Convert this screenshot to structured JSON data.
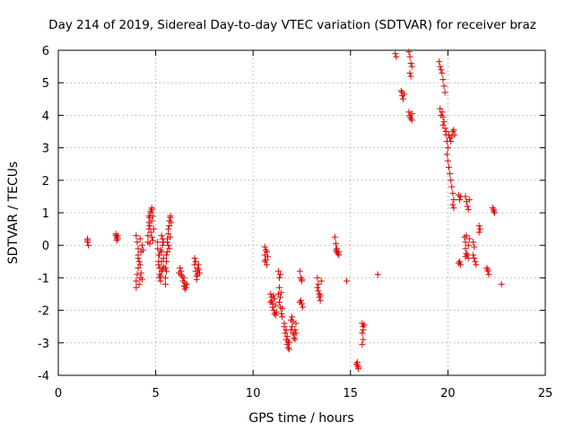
{
  "chart_data": {
    "type": "scatter",
    "title": "Day 214 of 2019, Sidereal Day-to-day VTEC variation (SDTVAR) for receiver braz",
    "xlabel": "GPS time / hours",
    "ylabel": "SDTVAR / TECUs",
    "xlim": [
      0,
      25
    ],
    "ylim": [
      -4,
      6
    ],
    "xticks": [
      "0",
      "5",
      "10",
      "15",
      "20",
      "25"
    ],
    "yticks": [
      "-4",
      "-3",
      "-2",
      "-1",
      "0",
      "1",
      "2",
      "3",
      "4",
      "5",
      "6"
    ],
    "grid": true,
    "marker": "plus",
    "color": "#e00000",
    "series": [
      {
        "name": "SDTVAR",
        "points": [
          [
            1.5,
            0.2
          ],
          [
            1.5,
            0.1
          ],
          [
            1.55,
            0.0
          ],
          [
            1.5,
            0.15
          ],
          [
            2.95,
            0.35
          ],
          [
            2.95,
            0.3
          ],
          [
            3.0,
            0.25
          ],
          [
            3.0,
            0.2
          ],
          [
            3.0,
            0.15
          ],
          [
            3.05,
            0.3
          ],
          [
            3.05,
            0.2
          ],
          [
            4.0,
            0.3
          ],
          [
            4.05,
            0.1
          ],
          [
            4.1,
            -0.1
          ],
          [
            4.1,
            -0.3
          ],
          [
            4.15,
            -0.5
          ],
          [
            4.1,
            -0.7
          ],
          [
            4.05,
            -0.9
          ],
          [
            4.0,
            -1.1
          ],
          [
            4.0,
            -1.3
          ],
          [
            4.15,
            -1.2
          ],
          [
            4.2,
            -1.0
          ],
          [
            4.25,
            -0.85
          ],
          [
            4.3,
            -1.05
          ],
          [
            4.2,
            -0.6
          ],
          [
            4.25,
            -0.2
          ],
          [
            4.3,
            0.0
          ],
          [
            4.35,
            -0.15
          ],
          [
            4.2,
            0.2
          ],
          [
            4.1,
            -0.4
          ],
          [
            4.6,
            0.1
          ],
          [
            4.6,
            0.3
          ],
          [
            4.65,
            0.5
          ],
          [
            4.65,
            0.7
          ],
          [
            4.7,
            0.85
          ],
          [
            4.75,
            1.0
          ],
          [
            4.8,
            1.1
          ],
          [
            4.8,
            1.15
          ],
          [
            4.85,
            0.9
          ],
          [
            4.7,
            0.6
          ],
          [
            4.75,
            0.4
          ],
          [
            4.8,
            0.25
          ],
          [
            4.85,
            0.15
          ],
          [
            4.7,
            0.05
          ],
          [
            4.65,
            0.9
          ],
          [
            4.8,
            0.75
          ],
          [
            4.9,
            0.5
          ],
          [
            4.75,
            1.05
          ],
          [
            5.1,
            0.1
          ],
          [
            5.1,
            -0.1
          ],
          [
            5.15,
            -0.3
          ],
          [
            5.15,
            -0.5
          ],
          [
            5.2,
            -0.7
          ],
          [
            5.2,
            -0.9
          ],
          [
            5.25,
            -1.1
          ],
          [
            5.3,
            -0.8
          ],
          [
            5.3,
            -0.5
          ],
          [
            5.3,
            -0.2
          ],
          [
            5.35,
            0.0
          ],
          [
            5.35,
            0.2
          ],
          [
            5.4,
            -0.4
          ],
          [
            5.4,
            -0.65
          ],
          [
            5.2,
            -0.3
          ],
          [
            5.25,
            -0.95
          ],
          [
            5.35,
            -0.75
          ],
          [
            5.15,
            -0.6
          ],
          [
            5.3,
            0.3
          ],
          [
            5.4,
            0.1
          ],
          [
            5.25,
            -0.15
          ],
          [
            5.2,
            -1.0
          ],
          [
            5.5,
            -1.0
          ],
          [
            5.5,
            -1.2
          ],
          [
            5.55,
            -0.8
          ],
          [
            5.55,
            -0.5
          ],
          [
            5.6,
            -0.2
          ],
          [
            5.6,
            0.1
          ],
          [
            5.65,
            0.35
          ],
          [
            5.65,
            0.5
          ],
          [
            5.7,
            0.6
          ],
          [
            5.7,
            0.75
          ],
          [
            5.75,
            0.85
          ],
          [
            5.75,
            0.9
          ],
          [
            5.8,
            0.7
          ],
          [
            5.6,
            0.2
          ],
          [
            5.55,
            -0.3
          ],
          [
            5.65,
            0.0
          ],
          [
            5.7,
            -0.1
          ],
          [
            5.75,
            0.25
          ],
          [
            5.5,
            -0.7
          ],
          [
            6.25,
            -0.7
          ],
          [
            6.3,
            -0.8
          ],
          [
            6.35,
            -0.95
          ],
          [
            6.4,
            -1.1
          ],
          [
            6.45,
            -1.25
          ],
          [
            6.5,
            -1.35
          ],
          [
            6.55,
            -1.3
          ],
          [
            6.6,
            -1.2
          ],
          [
            6.3,
            -0.9
          ],
          [
            6.45,
            -1.0
          ],
          [
            6.5,
            -1.15
          ],
          [
            6.2,
            -0.85
          ],
          [
            7.0,
            -0.4
          ],
          [
            7.0,
            -0.6
          ],
          [
            7.05,
            -0.8
          ],
          [
            7.1,
            -0.95
          ],
          [
            7.15,
            -0.7
          ],
          [
            7.2,
            -0.75
          ],
          [
            7.25,
            -0.85
          ],
          [
            7.05,
            -0.5
          ],
          [
            7.15,
            -0.9
          ],
          [
            7.1,
            -1.05
          ],
          [
            7.2,
            -0.6
          ],
          [
            10.6,
            -0.05
          ],
          [
            10.65,
            -0.15
          ],
          [
            10.6,
            -0.3
          ],
          [
            10.65,
            -0.45
          ],
          [
            10.7,
            -0.6
          ],
          [
            10.7,
            -0.2
          ],
          [
            10.75,
            -0.35
          ],
          [
            10.6,
            -0.5
          ],
          [
            10.9,
            -1.5
          ],
          [
            10.95,
            -1.7
          ],
          [
            11.0,
            -1.9
          ],
          [
            11.05,
            -2.0
          ],
          [
            11.1,
            -2.1
          ],
          [
            10.95,
            -1.6
          ],
          [
            11.0,
            -1.8
          ],
          [
            11.1,
            -1.65
          ],
          [
            11.15,
            -1.85
          ],
          [
            11.2,
            -2.05
          ],
          [
            11.05,
            -1.55
          ],
          [
            10.9,
            -1.75
          ],
          [
            11.15,
            -2.15
          ],
          [
            11.3,
            -0.8
          ],
          [
            11.35,
            -1.0
          ],
          [
            11.35,
            -1.3
          ],
          [
            11.4,
            -1.6
          ],
          [
            11.4,
            -1.9
          ],
          [
            11.45,
            -2.1
          ],
          [
            11.5,
            -2.2
          ],
          [
            11.3,
            -1.5
          ],
          [
            11.35,
            -1.75
          ],
          [
            11.45,
            -1.45
          ],
          [
            11.5,
            -1.95
          ],
          [
            11.4,
            -0.9
          ],
          [
            11.6,
            -2.5
          ],
          [
            11.65,
            -2.7
          ],
          [
            11.7,
            -2.9
          ],
          [
            11.75,
            -3.05
          ],
          [
            11.8,
            -3.15
          ],
          [
            11.85,
            -3.2
          ],
          [
            11.7,
            -2.6
          ],
          [
            11.75,
            -2.8
          ],
          [
            11.85,
            -3.0
          ],
          [
            11.6,
            -2.4
          ],
          [
            11.8,
            -2.95
          ],
          [
            11.95,
            -2.3
          ],
          [
            12.0,
            -2.5
          ],
          [
            12.05,
            -2.7
          ],
          [
            12.1,
            -2.85
          ],
          [
            12.15,
            -2.6
          ],
          [
            12.2,
            -2.4
          ],
          [
            12.0,
            -2.2
          ],
          [
            12.1,
            -2.75
          ],
          [
            12.15,
            -2.9
          ],
          [
            12.05,
            -2.35
          ],
          [
            11.95,
            -2.6
          ],
          [
            12.2,
            -2.7
          ],
          [
            12.4,
            -0.8
          ],
          [
            12.45,
            -1.0
          ],
          [
            12.5,
            -1.1
          ],
          [
            12.45,
            -1.7
          ],
          [
            12.5,
            -1.8
          ],
          [
            12.55,
            -1.9
          ],
          [
            12.5,
            -1.05
          ],
          [
            12.4,
            -1.75
          ],
          [
            13.3,
            -1.0
          ],
          [
            13.35,
            -1.2
          ],
          [
            13.35,
            -1.4
          ],
          [
            13.4,
            -1.5
          ],
          [
            13.4,
            -1.6
          ],
          [
            13.45,
            -1.7
          ],
          [
            13.3,
            -1.3
          ],
          [
            13.45,
            -1.55
          ],
          [
            13.5,
            -1.1
          ],
          [
            14.2,
            0.25
          ],
          [
            14.25,
            0.05
          ],
          [
            14.3,
            -0.1
          ],
          [
            14.3,
            -0.2
          ],
          [
            14.35,
            -0.25
          ],
          [
            14.4,
            -0.3
          ],
          [
            14.25,
            -0.15
          ],
          [
            14.4,
            -0.2
          ],
          [
            14.8,
            -1.1
          ],
          [
            15.3,
            -3.65
          ],
          [
            15.35,
            -3.7
          ],
          [
            15.4,
            -3.8
          ],
          [
            15.35,
            -3.6
          ],
          [
            15.4,
            -3.75
          ],
          [
            15.6,
            -2.4
          ],
          [
            15.65,
            -2.5
          ],
          [
            15.6,
            -2.7
          ],
          [
            15.65,
            -2.9
          ],
          [
            15.6,
            -3.05
          ],
          [
            15.7,
            -2.45
          ],
          [
            15.65,
            -2.6
          ],
          [
            16.4,
            -0.9
          ],
          [
            17.3,
            5.9
          ],
          [
            17.35,
            5.8
          ],
          [
            17.6,
            4.75
          ],
          [
            17.65,
            4.6
          ],
          [
            17.7,
            4.5
          ],
          [
            17.75,
            4.65
          ],
          [
            17.65,
            4.7
          ],
          [
            18.0,
            5.95
          ],
          [
            18.05,
            5.8
          ],
          [
            18.1,
            5.6
          ],
          [
            18.15,
            5.5
          ],
          [
            18.05,
            5.3
          ],
          [
            18.1,
            5.2
          ],
          [
            18.0,
            4.1
          ],
          [
            18.05,
            4.0
          ],
          [
            18.1,
            3.9
          ],
          [
            18.15,
            3.85
          ],
          [
            18.05,
            3.95
          ],
          [
            18.15,
            4.05
          ],
          [
            19.55,
            5.65
          ],
          [
            19.6,
            5.5
          ],
          [
            19.65,
            5.4
          ],
          [
            19.7,
            5.3
          ],
          [
            19.75,
            5.1
          ],
          [
            19.8,
            4.9
          ],
          [
            19.85,
            4.7
          ],
          [
            19.7,
            4.1
          ],
          [
            19.75,
            3.95
          ],
          [
            19.8,
            3.8
          ],
          [
            19.85,
            3.6
          ],
          [
            19.9,
            3.4
          ],
          [
            19.95,
            3.2
          ],
          [
            20.0,
            3.0
          ],
          [
            19.6,
            4.2
          ],
          [
            19.65,
            4.0
          ],
          [
            19.75,
            3.7
          ],
          [
            19.9,
            3.5
          ],
          [
            20.05,
            3.4
          ],
          [
            20.1,
            3.3
          ],
          [
            20.15,
            3.2
          ],
          [
            20.2,
            3.35
          ],
          [
            20.25,
            3.5
          ],
          [
            20.3,
            3.55
          ],
          [
            20.35,
            3.4
          ],
          [
            19.95,
            2.8
          ],
          [
            20.0,
            2.6
          ],
          [
            20.05,
            2.4
          ],
          [
            20.1,
            2.2
          ],
          [
            20.15,
            2.0
          ],
          [
            20.2,
            1.8
          ],
          [
            20.25,
            1.6
          ],
          [
            20.3,
            1.4
          ],
          [
            20.25,
            1.25
          ],
          [
            20.3,
            1.15
          ],
          [
            20.55,
            1.55
          ],
          [
            20.6,
            1.4
          ],
          [
            20.65,
            1.5
          ],
          [
            20.6,
            -0.5
          ],
          [
            20.65,
            -0.6
          ],
          [
            20.55,
            -0.55
          ],
          [
            20.9,
            1.5
          ],
          [
            20.95,
            1.35
          ],
          [
            21.0,
            1.2
          ],
          [
            21.05,
            1.1
          ],
          [
            21.1,
            1.4
          ],
          [
            20.85,
            0.25
          ],
          [
            20.9,
            0.1
          ],
          [
            20.9,
            -0.1
          ],
          [
            20.95,
            -0.25
          ],
          [
            21.0,
            -0.3
          ],
          [
            21.05,
            -0.4
          ],
          [
            20.95,
            0.3
          ],
          [
            21.1,
            0.2
          ],
          [
            21.05,
            0.0
          ],
          [
            20.9,
            -0.35
          ],
          [
            21.3,
            0.1
          ],
          [
            21.35,
            -0.05
          ],
          [
            21.35,
            -0.4
          ],
          [
            21.4,
            -0.5
          ],
          [
            21.45,
            -0.6
          ],
          [
            21.3,
            -0.3
          ],
          [
            21.6,
            0.6
          ],
          [
            21.65,
            0.5
          ],
          [
            21.6,
            0.4
          ],
          [
            22.0,
            -0.7
          ],
          [
            22.05,
            -0.8
          ],
          [
            22.1,
            -0.9
          ],
          [
            22.05,
            -0.75
          ],
          [
            22.3,
            1.15
          ],
          [
            22.35,
            1.05
          ],
          [
            22.4,
            1.0
          ],
          [
            22.35,
            1.1
          ],
          [
            22.75,
            -1.2
          ]
        ]
      }
    ]
  }
}
